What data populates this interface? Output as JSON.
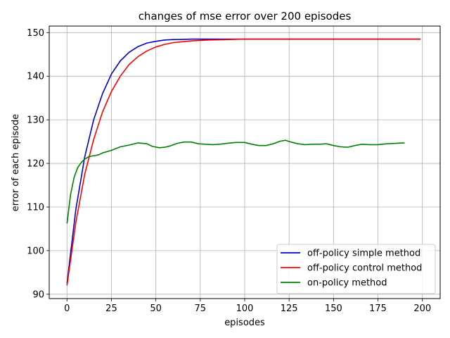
{
  "chart_data": {
    "type": "line",
    "title": "changes of mse error over 200 episodes",
    "xlabel": "episodes",
    "ylabel": "error of each episode",
    "xlim": [
      -10,
      210
    ],
    "ylim": [
      89,
      151.5
    ],
    "xticks": [
      0,
      25,
      50,
      75,
      100,
      125,
      150,
      175,
      200
    ],
    "yticks": [
      90,
      100,
      110,
      120,
      130,
      140,
      150
    ],
    "grid": true,
    "legend_position": "lower-right",
    "series": [
      {
        "name": "off-policy simple method",
        "color": "#0000cc",
        "x": [
          0,
          5,
          10,
          15,
          20,
          25,
          30,
          35,
          40,
          45,
          50,
          55,
          60,
          70,
          80,
          90,
          100,
          120,
          140,
          160,
          180,
          199
        ],
        "y": [
          92.5,
          109.5,
          121.5,
          130.0,
          136.0,
          140.5,
          143.5,
          145.5,
          146.8,
          147.6,
          148.0,
          148.3,
          148.4,
          148.5,
          148.5,
          148.5,
          148.5,
          148.5,
          148.5,
          148.5,
          148.5,
          148.5
        ]
      },
      {
        "name": "off-policy control method",
        "color": "#ff0000",
        "x": [
          0,
          5,
          10,
          15,
          20,
          25,
          30,
          35,
          40,
          45,
          50,
          55,
          60,
          70,
          80,
          90,
          100,
          120,
          140,
          160,
          180,
          199
        ],
        "y": [
          92.0,
          106.5,
          117.5,
          125.5,
          131.8,
          136.5,
          140.0,
          142.7,
          144.5,
          145.8,
          146.7,
          147.3,
          147.7,
          148.1,
          148.3,
          148.4,
          148.5,
          148.5,
          148.5,
          148.5,
          148.5,
          148.5
        ]
      },
      {
        "name": "on-policy method",
        "color": "#008000",
        "x": [
          0,
          2,
          4,
          6,
          8,
          10,
          12,
          14,
          16,
          18,
          20,
          25,
          30,
          35,
          40,
          45,
          48,
          52,
          55,
          58,
          62,
          66,
          70,
          74,
          78,
          82,
          86,
          90,
          95,
          100,
          104,
          108,
          112,
          116,
          120,
          123,
          126,
          130,
          134,
          138,
          142,
          146,
          150,
          154,
          158,
          162,
          166,
          170,
          175,
          180,
          185,
          190
        ],
        "y": [
          106.2,
          112.8,
          116.8,
          119.0,
          120.2,
          121.0,
          121.5,
          121.7,
          121.8,
          122.0,
          122.4,
          123.0,
          123.8,
          124.2,
          124.7,
          124.5,
          123.9,
          123.6,
          123.7,
          124.0,
          124.6,
          124.9,
          124.9,
          124.5,
          124.4,
          124.3,
          124.4,
          124.6,
          124.8,
          124.8,
          124.4,
          124.1,
          124.1,
          124.5,
          125.1,
          125.3,
          124.9,
          124.5,
          124.3,
          124.4,
          124.4,
          124.5,
          124.1,
          123.8,
          123.7,
          124.1,
          124.4,
          124.3,
          124.3,
          124.5,
          124.6,
          124.7
        ]
      }
    ]
  }
}
